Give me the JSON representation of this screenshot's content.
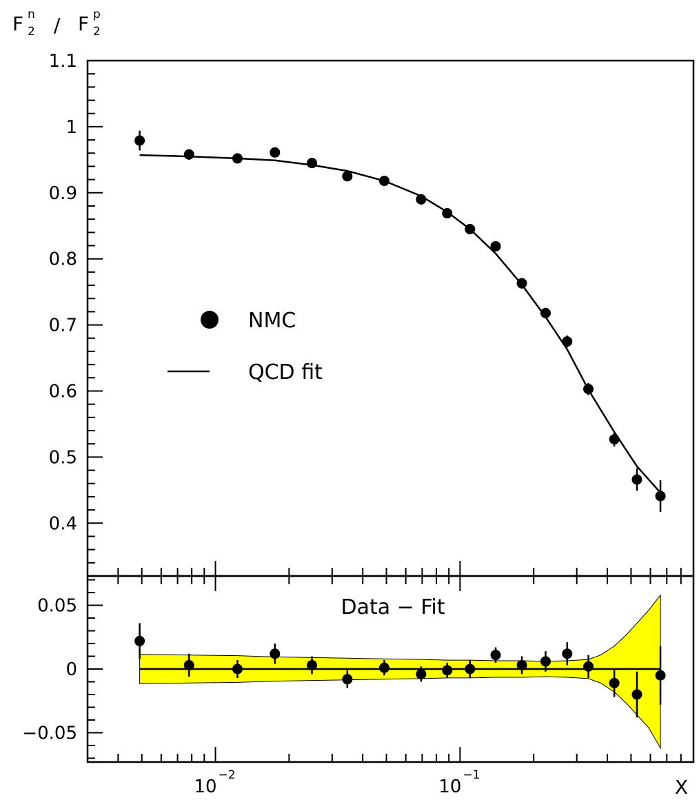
{
  "chart_data": {
    "type": "scatter",
    "x_scale": "log",
    "xlim": [
      0.003,
      0.9
    ],
    "xlabel": "X",
    "ylabel": "F2n / F2p",
    "ylabel_parts": {
      "sym1": "F",
      "sub1": "2",
      "sup1": "n",
      "slash": "/",
      "sym2": "F",
      "sub2": "2",
      "sup2": "p"
    },
    "x_tick_labels": [
      {
        "value": 0.01,
        "mantissa": "10",
        "exponent": "−2"
      },
      {
        "value": 0.1,
        "mantissa": "10",
        "exponent": "−1"
      }
    ],
    "top_panel": {
      "ylim": [
        0.32,
        1.1
      ],
      "y_ticks": [
        0.4,
        0.5,
        0.6,
        0.7,
        0.8,
        0.9,
        1.0,
        1.1
      ],
      "y_tick_labels": [
        "0.4",
        "0.5",
        "0.6",
        "0.7",
        "0.8",
        "0.9",
        "1",
        "1.1"
      ],
      "legend": {
        "position": "center-left",
        "items": [
          {
            "label": "NMC",
            "marker": "dot"
          },
          {
            "label": "QCD fit",
            "marker": "line"
          }
        ]
      },
      "series": [
        {
          "marker": "dot",
          "x": [
            0.0049,
            0.0078,
            0.0123,
            0.0175,
            0.0248,
            0.0346,
            0.049,
            0.0693,
            0.0886,
            0.1098,
            0.1398,
            0.1789,
            0.2237,
            0.2741,
            0.3347,
            0.4271,
            0.5286,
            0.6594
          ],
          "y": [
            0.979,
            0.958,
            0.952,
            0.961,
            0.945,
            0.925,
            0.918,
            0.89,
            0.869,
            0.845,
            0.819,
            0.763,
            0.718,
            0.675,
            0.603,
            0.527,
            0.466,
            0.441
          ],
          "yerr": [
            0.015,
            0.008,
            0.007,
            0.007,
            0.007,
            0.007,
            0.007,
            0.007,
            0.007,
            0.007,
            0.007,
            0.008,
            0.008,
            0.009,
            0.009,
            0.011,
            0.017,
            0.024
          ]
        },
        {
          "marker": "line",
          "x": [
            0.0049,
            0.0078,
            0.0123,
            0.0175,
            0.0248,
            0.0346,
            0.049,
            0.0693,
            0.0886,
            0.1098,
            0.1398,
            0.1789,
            0.2237,
            0.2741,
            0.3347,
            0.4271,
            0.5286,
            0.6594
          ],
          "y": [
            0.957,
            0.955,
            0.952,
            0.949,
            0.942,
            0.933,
            0.918,
            0.895,
            0.871,
            0.845,
            0.808,
            0.761,
            0.712,
            0.663,
            0.602,
            0.538,
            0.486,
            0.446
          ]
        }
      ]
    },
    "bottom_panel": {
      "title": "Data − Fit",
      "ylim": [
        -0.073,
        0.073
      ],
      "y_ticks": [
        -0.05,
        0,
        0.05
      ],
      "y_tick_labels": [
        "−0.05",
        "0",
        "0.05"
      ],
      "band_color": "#ffff00",
      "band": {
        "x": [
          0.0049,
          0.0078,
          0.0123,
          0.0175,
          0.0248,
          0.0346,
          0.049,
          0.0693,
          0.0886,
          0.1098,
          0.1398,
          0.1789,
          0.2237,
          0.2741,
          0.3347,
          0.3754,
          0.4271,
          0.4791,
          0.5286,
          0.5895,
          0.6594
        ],
        "upper": [
          0.0115,
          0.011,
          0.0105,
          0.0095,
          0.009,
          0.0085,
          0.008,
          0.0075,
          0.007,
          0.007,
          0.0065,
          0.0065,
          0.006,
          0.0065,
          0.0075,
          0.011,
          0.018,
          0.027,
          0.036,
          0.046,
          0.058
        ],
        "lower": [
          -0.0115,
          -0.011,
          -0.0105,
          -0.0095,
          -0.009,
          -0.0085,
          -0.008,
          -0.0075,
          -0.007,
          -0.007,
          -0.0065,
          -0.0065,
          -0.006,
          -0.0065,
          -0.0075,
          -0.011,
          -0.018,
          -0.027,
          -0.036,
          -0.046,
          -0.062
        ]
      },
      "series": [
        {
          "marker": "dot",
          "x": [
            0.0049,
            0.0078,
            0.0123,
            0.0175,
            0.0248,
            0.0346,
            0.049,
            0.0693,
            0.0886,
            0.1098,
            0.1398,
            0.1789,
            0.2237,
            0.2741,
            0.3347,
            0.4271,
            0.5286,
            0.6594
          ],
          "y": [
            0.022,
            0.003,
            0.0,
            0.012,
            0.003,
            -0.008,
            0.001,
            -0.004,
            -0.001,
            0.0,
            0.011,
            0.003,
            0.006,
            0.012,
            0.002,
            -0.011,
            -0.02,
            -0.005
          ],
          "yerr": [
            0.014,
            0.009,
            0.007,
            0.008,
            0.007,
            0.007,
            0.006,
            0.006,
            0.006,
            0.007,
            0.006,
            0.007,
            0.008,
            0.009,
            0.009,
            0.011,
            0.018,
            0.023
          ]
        },
        {
          "marker": "line",
          "x": [
            0.0049,
            0.6594
          ],
          "y": [
            0,
            0
          ]
        }
      ]
    }
  }
}
